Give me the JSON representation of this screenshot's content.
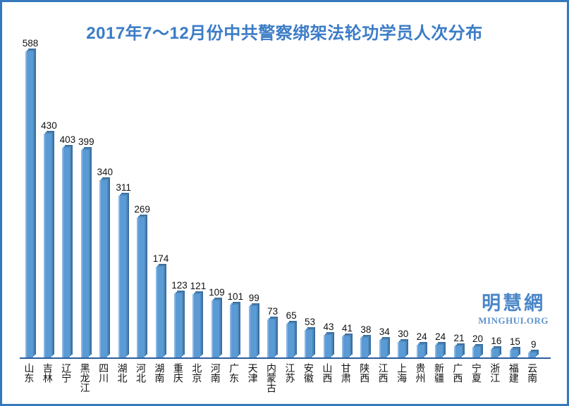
{
  "page": {
    "background": "#ffffff",
    "border_color": "#3578BE"
  },
  "watermark": {
    "site_name": "明慧網",
    "site_url": "MINGHUI.ORG",
    "color": "#4A86C8"
  },
  "chart_data": {
    "type": "bar",
    "title": "2017年7～12月份中共警察绑架法轮功学员人次分布",
    "title_color": "#3B7CC6",
    "categories": [
      "山东",
      "吉林",
      "辽宁",
      "黑龙江",
      "四川",
      "湖北",
      "河北",
      "湖南",
      "重庆",
      "北京",
      "河南",
      "广东",
      "天津",
      "内蒙古",
      "江苏",
      "安徽",
      "山西",
      "甘肃",
      "陕西",
      "江西",
      "上海",
      "贵州",
      "新疆",
      "广西",
      "宁夏",
      "浙江",
      "福建",
      "云南"
    ],
    "values": [
      588,
      430,
      403,
      399,
      340,
      311,
      269,
      174,
      123,
      121,
      109,
      101,
      99,
      73,
      65,
      53,
      43,
      41,
      38,
      34,
      30,
      24,
      24,
      21,
      20,
      16,
      15,
      9
    ],
    "bar_color": "#5B9BD5",
    "bar_highlight_color": "#8AB5E2",
    "bar_shade_colors": [
      "#4E89BC",
      "#3C6F9F"
    ],
    "axis_color": "#2B5D9B",
    "data_labels": true,
    "y_axis_visible": false,
    "gridlines": false,
    "legend": "none",
    "xlabel": "",
    "ylabel": "",
    "ylim": [
      0,
      600
    ]
  }
}
